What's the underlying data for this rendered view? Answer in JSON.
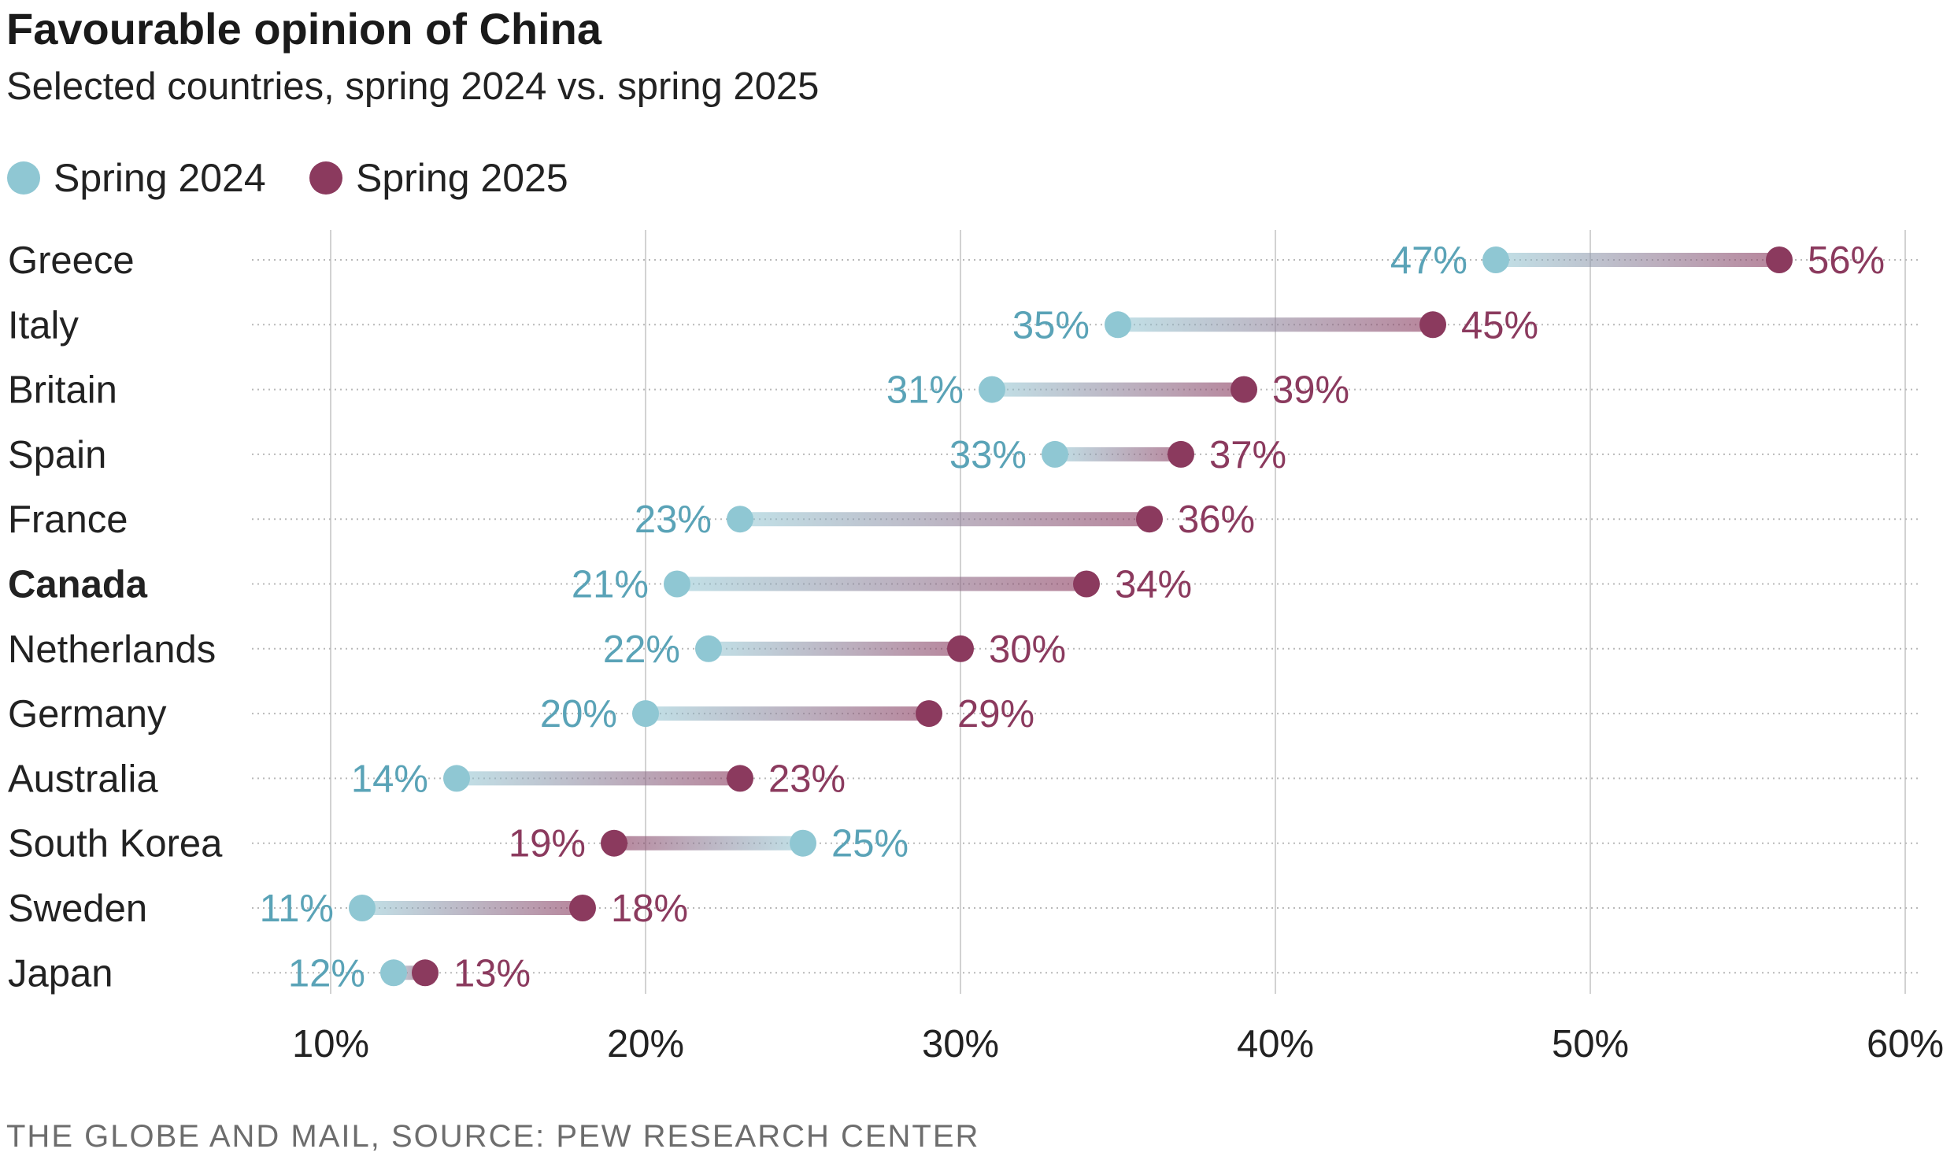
{
  "chart_data": {
    "type": "dumbbell",
    "title": "Favourable opinion of China",
    "subtitle": "Selected countries, spring 2024 vs. spring 2025",
    "source": "THE GLOBE AND MAIL, SOURCE: PEW RESEARCH CENTER",
    "xlabel": "",
    "ylabel": "",
    "xlim": [
      7.5,
      60.5
    ],
    "xticks": [
      10,
      20,
      30,
      40,
      50,
      60
    ],
    "tick_labels": [
      "10%",
      "20%",
      "30%",
      "40%",
      "50%",
      "60%"
    ],
    "legend_position": "top-left",
    "colors": {
      "spring2024": "#8fc7d3",
      "spring2025": "#8b3a5e",
      "label2024": "#5aa3b7",
      "label2025": "#8b3a5e"
    },
    "series": [
      {
        "name": "Spring 2024",
        "key": "spring2024"
      },
      {
        "name": "Spring 2025",
        "key": "spring2025"
      }
    ],
    "categories": [
      "Greece",
      "Italy",
      "Britain",
      "Spain",
      "France",
      "Canada",
      "Netherlands",
      "Germany",
      "Australia",
      "South Korea",
      "Sweden",
      "Japan"
    ],
    "highlighted": [
      "Canada"
    ],
    "rows": [
      {
        "country": "Greece",
        "spring2024": 47,
        "spring2025": 56,
        "label2024": "47%",
        "label2025": "56%"
      },
      {
        "country": "Italy",
        "spring2024": 35,
        "spring2025": 45,
        "label2024": "35%",
        "label2025": "45%"
      },
      {
        "country": "Britain",
        "spring2024": 31,
        "spring2025": 39,
        "label2024": "31%",
        "label2025": "39%"
      },
      {
        "country": "Spain",
        "spring2024": 33,
        "spring2025": 37,
        "label2024": "33%",
        "label2025": "37%"
      },
      {
        "country": "France",
        "spring2024": 23,
        "spring2025": 36,
        "label2024": "23%",
        "label2025": "36%"
      },
      {
        "country": "Canada",
        "spring2024": 21,
        "spring2025": 34,
        "label2024": "21%",
        "label2025": "34%"
      },
      {
        "country": "Netherlands",
        "spring2024": 22,
        "spring2025": 30,
        "label2024": "22%",
        "label2025": "30%"
      },
      {
        "country": "Germany",
        "spring2024": 20,
        "spring2025": 29,
        "label2024": "20%",
        "label2025": "29%"
      },
      {
        "country": "Australia",
        "spring2024": 14,
        "spring2025": 23,
        "label2024": "14%",
        "label2025": "23%"
      },
      {
        "country": "South Korea",
        "spring2024": 25,
        "spring2025": 19,
        "label2024": "25%",
        "label2025": "19%"
      },
      {
        "country": "Sweden",
        "spring2024": 11,
        "spring2025": 18,
        "label2024": "11%",
        "label2025": "18%"
      },
      {
        "country": "Japan",
        "spring2024": 12,
        "spring2025": 13,
        "label2024": "12%",
        "label2025": "13%"
      }
    ]
  }
}
